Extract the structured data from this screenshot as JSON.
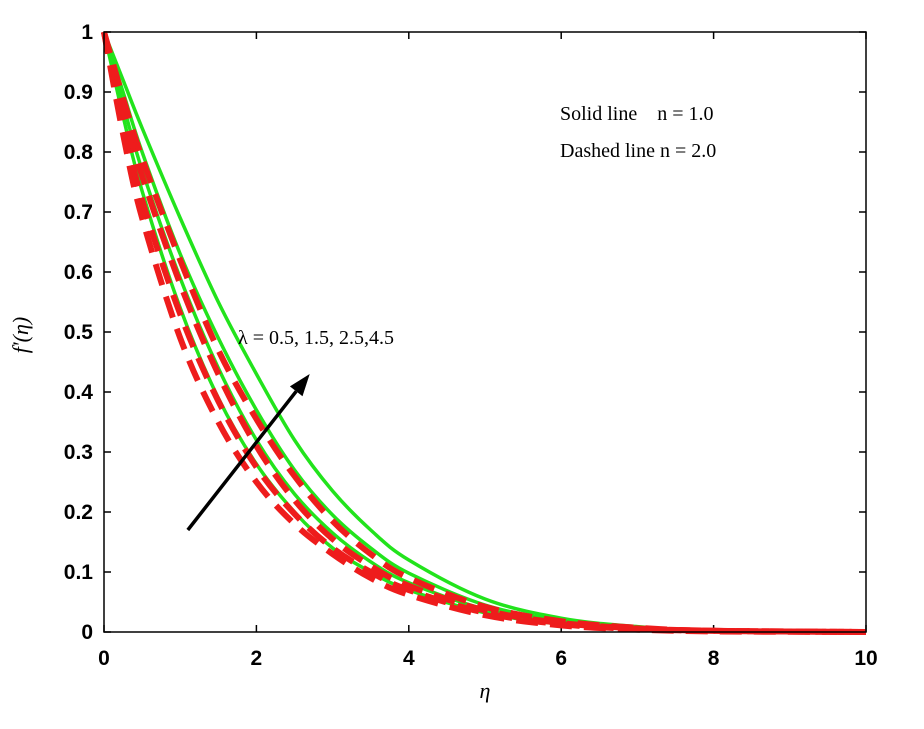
{
  "chart_data": {
    "type": "line",
    "title": "",
    "xlabel": "η",
    "ylabel": "f'(η)",
    "xlim": [
      0,
      10
    ],
    "ylim": [
      0,
      1
    ],
    "x_ticks": [
      "0",
      "2",
      "4",
      "6",
      "8",
      "10"
    ],
    "y_ticks": [
      "0",
      "0.1",
      "0.2",
      "0.3",
      "0.4",
      "0.5",
      "0.6",
      "0.7",
      "0.8",
      "0.9",
      "1"
    ],
    "grid": false,
    "legend_text": [
      "Solid line    n = 1.0",
      "Dashed line n = 2.0"
    ],
    "annotation": {
      "text": "λ = 0.5, 1.5, 2.5,4.5",
      "arrow_from": [
        1.1,
        0.17
      ],
      "arrow_to": [
        2.7,
        0.43
      ]
    },
    "colors": {
      "solid": "#22e31c",
      "dashed": "#ee1c1c",
      "arrow": "#000000"
    },
    "series": [
      {
        "style": "solid",
        "x": [
          0,
          0.25,
          0.5,
          1,
          1.5,
          2,
          2.5,
          3,
          3.5,
          4,
          5,
          6,
          7,
          8,
          10
        ],
        "values": [
          1.0,
          0.86,
          0.735,
          0.54,
          0.39,
          0.28,
          0.2,
          0.14,
          0.1,
          0.07,
          0.032,
          0.013,
          0.005,
          0.002,
          0.0
        ]
      },
      {
        "style": "solid",
        "x": [
          0,
          0.25,
          0.5,
          1,
          1.5,
          2,
          2.5,
          3,
          3.5,
          4,
          5,
          6,
          7,
          8,
          10
        ],
        "values": [
          1.0,
          0.88,
          0.77,
          0.59,
          0.44,
          0.32,
          0.23,
          0.165,
          0.117,
          0.082,
          0.038,
          0.016,
          0.006,
          0.002,
          0.0
        ]
      },
      {
        "style": "solid",
        "x": [
          0,
          0.25,
          0.5,
          1,
          1.5,
          2,
          2.5,
          3,
          3.5,
          4,
          5,
          6,
          7,
          8,
          10
        ],
        "values": [
          1.0,
          0.9,
          0.8,
          0.63,
          0.49,
          0.37,
          0.27,
          0.195,
          0.14,
          0.098,
          0.045,
          0.019,
          0.007,
          0.003,
          0.0
        ]
      },
      {
        "style": "solid",
        "x": [
          0,
          0.25,
          0.5,
          1,
          1.5,
          2,
          2.5,
          3,
          3.5,
          4,
          5,
          6,
          7,
          8,
          10
        ],
        "values": [
          1.0,
          0.92,
          0.84,
          0.69,
          0.55,
          0.43,
          0.32,
          0.235,
          0.17,
          0.12,
          0.055,
          0.023,
          0.009,
          0.003,
          0.0
        ]
      },
      {
        "style": "dashed",
        "x": [
          0,
          0.25,
          0.5,
          1,
          1.5,
          2,
          2.5,
          3,
          3.5,
          4,
          5,
          6,
          7,
          8,
          10
        ],
        "values": [
          1.0,
          0.83,
          0.69,
          0.49,
          0.35,
          0.25,
          0.18,
          0.13,
          0.09,
          0.062,
          0.028,
          0.011,
          0.004,
          0.001,
          0.0
        ]
      },
      {
        "style": "dashed",
        "x": [
          0,
          0.25,
          0.5,
          1,
          1.5,
          2,
          2.5,
          3,
          3.5,
          4,
          5,
          6,
          7,
          8,
          10
        ],
        "values": [
          1.0,
          0.85,
          0.72,
          0.53,
          0.385,
          0.275,
          0.197,
          0.14,
          0.1,
          0.07,
          0.032,
          0.013,
          0.005,
          0.002,
          0.0
        ]
      },
      {
        "style": "dashed",
        "x": [
          0,
          0.25,
          0.5,
          1,
          1.5,
          2,
          2.5,
          3,
          3.5,
          4,
          5,
          6,
          7,
          8,
          10
        ],
        "values": [
          1.0,
          0.87,
          0.76,
          0.58,
          0.43,
          0.31,
          0.22,
          0.155,
          0.11,
          0.077,
          0.036,
          0.015,
          0.006,
          0.002,
          0.0
        ]
      },
      {
        "style": "dashed",
        "x": [
          0,
          0.25,
          0.5,
          1,
          1.5,
          2,
          2.5,
          3,
          3.5,
          4,
          5,
          6,
          7,
          8,
          10
        ],
        "values": [
          1.0,
          0.89,
          0.79,
          0.62,
          0.47,
          0.355,
          0.26,
          0.185,
          0.13,
          0.09,
          0.042,
          0.018,
          0.007,
          0.002,
          0.0
        ]
      }
    ]
  }
}
